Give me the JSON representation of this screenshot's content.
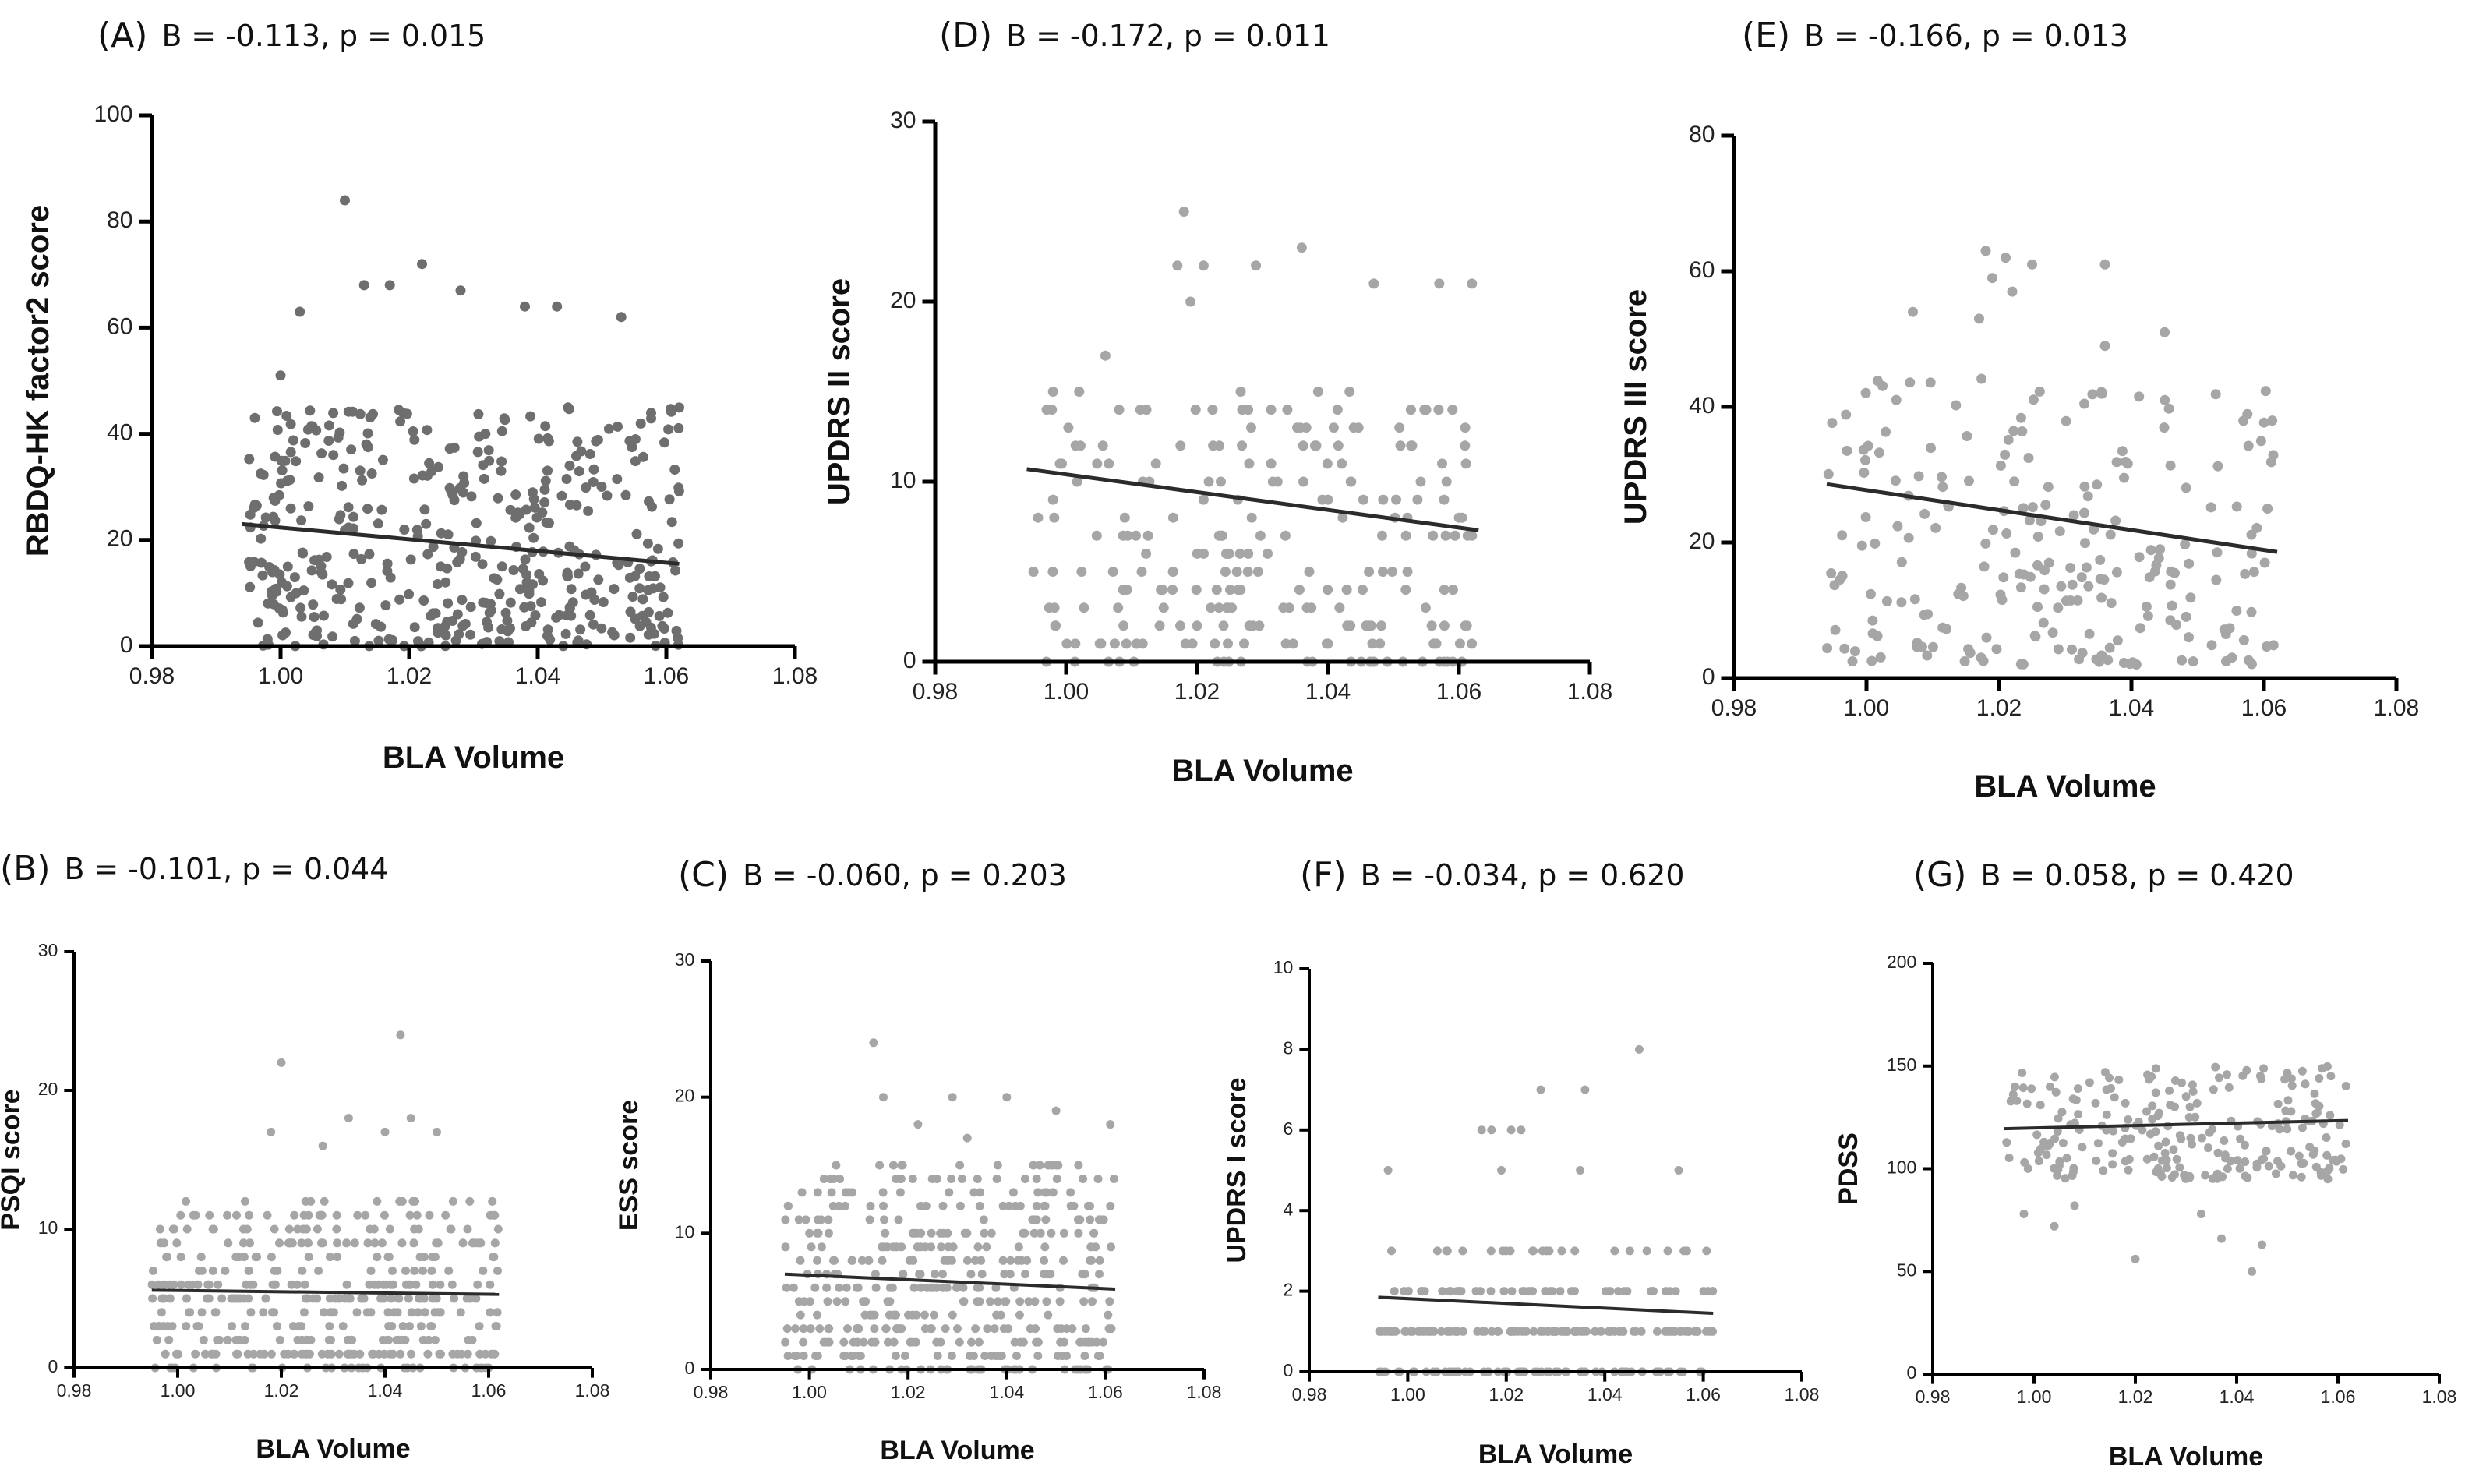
{
  "figure": {
    "xlabel_text": "BLA Volume"
  },
  "chart_data": [
    {
      "id": "A",
      "type": "scatter",
      "panel_label": "(A)",
      "stat_text": "B = -0.113, p = 0.015",
      "xlabel": "BLA Volume",
      "ylabel": "RBDQ-HK factor2 score",
      "xlim": [
        0.98,
        1.08
      ],
      "ylim": [
        0,
        100
      ],
      "xticks": [
        "0.98",
        "1.00",
        "1.02",
        "1.04",
        "1.06",
        "1.08"
      ],
      "yticks": [
        "0",
        "20",
        "40",
        "60",
        "80",
        "100"
      ],
      "grid": false,
      "point_color": "#6e6e6e",
      "line_color": "#2b2b2b",
      "n_points": 430,
      "fit_line": {
        "x": [
          0.994,
          1.062
        ],
        "y": [
          23.0,
          15.5
        ]
      },
      "point_x_range": [
        0.995,
        1.062
      ],
      "point_y_spread": [
        0,
        45
      ],
      "notable_points": [
        [
          1.01,
          84
        ],
        [
          1.022,
          72
        ],
        [
          1.013,
          68
        ],
        [
          1.017,
          68
        ],
        [
          1.028,
          67
        ],
        [
          1.038,
          64
        ],
        [
          1.043,
          64
        ],
        [
          1.053,
          62
        ],
        [
          1.003,
          63
        ],
        [
          1.0,
          51
        ],
        [
          0.996,
          43
        ]
      ]
    },
    {
      "id": "B",
      "type": "scatter",
      "panel_label": "(B)",
      "stat_text": "B = -0.101, p = 0.044",
      "xlabel": "BLA Volume",
      "ylabel": "PSQI score",
      "xlim": [
        0.98,
        1.08
      ],
      "ylim": [
        0,
        30
      ],
      "xticks": [
        "0.98",
        "1.00",
        "1.02",
        "1.04",
        "1.06",
        "1.08"
      ],
      "yticks": [
        "0",
        "10",
        "20",
        "30"
      ],
      "grid": false,
      "point_color": "#a6a6a6",
      "line_color": "#2b2b2b",
      "n_points": 400,
      "fit_line": {
        "x": [
          0.995,
          1.062
        ],
        "y": [
          5.6,
          5.3
        ]
      },
      "point_x_range": [
        0.995,
        1.062
      ],
      "point_y_spread": [
        0,
        12
      ],
      "notable_points": [
        [
          1.043,
          24
        ],
        [
          1.02,
          22
        ],
        [
          1.033,
          18
        ],
        [
          1.045,
          18
        ],
        [
          1.04,
          17
        ],
        [
          1.05,
          17
        ],
        [
          1.018,
          17
        ],
        [
          1.028,
          16
        ]
      ]
    },
    {
      "id": "C",
      "type": "scatter",
      "panel_label": "(C)",
      "stat_text": "B = -0.060, p = 0.203",
      "xlabel": "BLA Volume",
      "ylabel": "ESS score",
      "xlim": [
        0.98,
        1.08
      ],
      "ylim": [
        0,
        30
      ],
      "xticks": [
        "0.98",
        "1.00",
        "1.02",
        "1.04",
        "1.06",
        "1.08"
      ],
      "yticks": [
        "0",
        "10",
        "20",
        "30"
      ],
      "grid": false,
      "point_color": "#a6a6a6",
      "line_color": "#2b2b2b",
      "n_points": 420,
      "fit_line": {
        "x": [
          0.995,
          1.062
        ],
        "y": [
          7.0,
          5.9
        ]
      },
      "point_x_range": [
        0.995,
        1.062
      ],
      "point_y_spread": [
        0,
        15
      ],
      "notable_points": [
        [
          1.013,
          24
        ],
        [
          1.015,
          20
        ],
        [
          1.029,
          20
        ],
        [
          1.04,
          20
        ],
        [
          1.05,
          19
        ],
        [
          1.061,
          18
        ],
        [
          1.022,
          18
        ],
        [
          1.032,
          17
        ]
      ]
    },
    {
      "id": "D",
      "type": "scatter",
      "panel_label": "(D)",
      "stat_text": "B = -0.172, p = 0.011",
      "xlabel": "BLA Volume",
      "ylabel": "UPDRS II score",
      "xlim": [
        0.98,
        1.08
      ],
      "ylim": [
        0,
        30
      ],
      "xticks": [
        "0.98",
        "1.00",
        "1.02",
        "1.04",
        "1.06",
        "1.08"
      ],
      "yticks": [
        "0",
        "10",
        "20",
        "30"
      ],
      "grid": false,
      "point_color": "#a6a6a6",
      "line_color": "#2b2b2b",
      "n_points": 230,
      "fit_line": {
        "x": [
          0.994,
          1.063
        ],
        "y": [
          10.7,
          7.3
        ]
      },
      "point_x_range": [
        0.994,
        1.062
      ],
      "point_y_spread": [
        0,
        15
      ],
      "notable_points": [
        [
          1.018,
          25
        ],
        [
          1.036,
          23
        ],
        [
          1.017,
          22
        ],
        [
          1.021,
          22
        ],
        [
          1.029,
          22
        ],
        [
          1.047,
          21
        ],
        [
          1.057,
          21
        ],
        [
          1.062,
          21
        ],
        [
          1.019,
          20
        ],
        [
          1.006,
          17
        ],
        [
          0.998,
          15
        ],
        [
          1.002,
          15
        ]
      ]
    },
    {
      "id": "E",
      "type": "scatter",
      "panel_label": "(E)",
      "stat_text": "B = -0.166, p = 0.013",
      "xlabel": "BLA Volume",
      "ylabel": "UPDRS III score",
      "xlim": [
        0.98,
        1.08
      ],
      "ylim": [
        0,
        80
      ],
      "xticks": [
        "0.98",
        "1.00",
        "1.02",
        "1.04",
        "1.06",
        "1.08"
      ],
      "yticks": [
        "0",
        "20",
        "40",
        "60",
        "80"
      ],
      "grid": false,
      "point_color": "#a6a6a6",
      "line_color": "#2b2b2b",
      "n_points": 230,
      "fit_line": {
        "x": [
          0.994,
          1.062
        ],
        "y": [
          28.6,
          18.6
        ]
      },
      "point_x_range": [
        0.994,
        1.062
      ],
      "point_y_spread": [
        2,
        45
      ],
      "notable_points": [
        [
          1.018,
          63
        ],
        [
          1.021,
          62
        ],
        [
          1.025,
          61
        ],
        [
          1.036,
          61
        ],
        [
          1.019,
          59
        ],
        [
          1.022,
          57
        ],
        [
          1.007,
          54
        ],
        [
          1.017,
          53
        ],
        [
          1.045,
          51
        ],
        [
          1.036,
          49
        ]
      ]
    },
    {
      "id": "F",
      "type": "scatter",
      "panel_label": "(F)",
      "stat_text": "B = -0.034, p = 0.620",
      "xlabel": "BLA Volume",
      "ylabel": "UPDRS I score",
      "xlim": [
        0.98,
        1.08
      ],
      "ylim": [
        0,
        10
      ],
      "xticks": [
        "0.98",
        "1.00",
        "1.02",
        "1.04",
        "1.06",
        "1.08"
      ],
      "yticks": [
        "0",
        "2",
        "4",
        "6",
        "8",
        "10"
      ],
      "grid": false,
      "point_color": "#a6a6a6",
      "line_color": "#2b2b2b",
      "n_points": 230,
      "fit_line": {
        "x": [
          0.994,
          1.062
        ],
        "y": [
          1.85,
          1.45
        ]
      },
      "point_x_range": [
        0.994,
        1.062
      ],
      "point_y_spread": [
        0,
        3
      ],
      "notable_points": [
        [
          1.047,
          8
        ],
        [
          1.027,
          7
        ],
        [
          1.036,
          7
        ],
        [
          1.015,
          6
        ],
        [
          1.017,
          6
        ],
        [
          1.021,
          6
        ],
        [
          1.023,
          6
        ],
        [
          0.996,
          5
        ],
        [
          1.019,
          5
        ],
        [
          1.035,
          5
        ],
        [
          1.055,
          5
        ]
      ]
    },
    {
      "id": "G",
      "type": "scatter",
      "panel_label": "(G)",
      "stat_text": "B = 0.058, p = 0.420",
      "xlabel": "BLA Volume",
      "ylabel": "PDSS",
      "xlim": [
        0.98,
        1.08
      ],
      "ylim": [
        0,
        200
      ],
      "xticks": [
        "0.98",
        "1.00",
        "1.02",
        "1.04",
        "1.06",
        "1.08"
      ],
      "yticks": [
        "0",
        "50",
        "100",
        "150",
        "200"
      ],
      "grid": false,
      "point_color": "#a6a6a6",
      "line_color": "#2b2b2b",
      "n_points": 230,
      "fit_line": {
        "x": [
          0.994,
          1.062
        ],
        "y": [
          119.5,
          123.5
        ]
      },
      "point_x_range": [
        0.994,
        1.062
      ],
      "point_y_spread": [
        95,
        150
      ],
      "notable_points": [
        [
          0.998,
          78
        ],
        [
          1.004,
          72
        ],
        [
          1.008,
          82
        ],
        [
          1.02,
          56
        ],
        [
          1.037,
          66
        ],
        [
          1.043,
          50
        ],
        [
          1.045,
          63
        ],
        [
          1.033,
          78
        ],
        [
          1.058,
          95
        ]
      ]
    }
  ]
}
